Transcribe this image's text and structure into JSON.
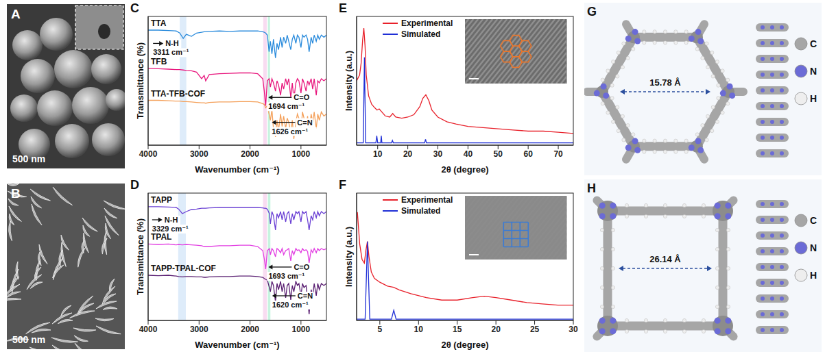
{
  "chart_data": [
    {
      "panel": "C",
      "type": "line",
      "x_label": "Wavenumber (cm⁻¹)",
      "y_label": "Transmittance (%)",
      "x": [
        4000,
        3800,
        3600,
        3450,
        3380,
        3311,
        3250,
        3150,
        3050,
        2950,
        2900,
        2870,
        2800,
        2600,
        2400,
        2200,
        2000,
        1850,
        1750,
        1720,
        1694,
        1660,
        1626,
        1600,
        1570,
        1540,
        1500,
        1470,
        1440,
        1400,
        1370,
        1340,
        1300,
        1270,
        1240,
        1200,
        1170,
        1140,
        1100,
        1070,
        1040,
        1000,
        970,
        940,
        900,
        870,
        840,
        800,
        770,
        740,
        700,
        670,
        640,
        600,
        550,
        500
      ],
      "xlim": [
        4000,
        500
      ],
      "xticks": [
        4000,
        3000,
        2000,
        1000
      ],
      "ylim": [
        0,
        3.1
      ],
      "tick_labels": "x",
      "series": [
        {
          "name": "TTA",
          "color": "#2a8bdc",
          "values": [
            2.77,
            2.77,
            2.76,
            2.75,
            2.7,
            2.57,
            2.67,
            2.62,
            2.7,
            2.72,
            2.73,
            2.73,
            2.74,
            2.75,
            2.74,
            2.75,
            2.75,
            2.75,
            2.73,
            2.72,
            2.7,
            2.65,
            2.25,
            2.5,
            2.2,
            2.55,
            2.1,
            2.45,
            2.3,
            2.6,
            2.35,
            2.6,
            2.45,
            2.65,
            2.5,
            2.3,
            2.55,
            2.65,
            2.45,
            2.65,
            2.6,
            2.35,
            2.65,
            2.6,
            2.65,
            2.55,
            2.25,
            2.6,
            2.45,
            2.65,
            2.5,
            2.65,
            2.55,
            2.65,
            2.6,
            2.65
          ]
        },
        {
          "name": "TFB",
          "color": "#e8187e",
          "values": [
            1.85,
            1.84,
            1.83,
            1.82,
            1.82,
            1.81,
            1.8,
            1.79,
            1.76,
            1.6,
            1.68,
            1.55,
            1.7,
            1.72,
            1.73,
            1.74,
            1.74,
            1.72,
            1.6,
            1.3,
            0.95,
            1.55,
            1.6,
            1.4,
            1.6,
            1.5,
            1.3,
            1.55,
            1.45,
            1.2,
            1.5,
            1.35,
            1.6,
            1.45,
            1.6,
            1.15,
            1.5,
            1.1,
            1.5,
            1.6,
            1.55,
            1.25,
            1.6,
            1.5,
            1.3,
            1.55,
            1.45,
            1.6,
            1.35,
            1.6,
            1.2,
            1.55,
            1.5,
            1.6,
            1.55,
            1.6
          ]
        },
        {
          "name": "TTA-TFB-COF",
          "color": "#f4a05a",
          "values": [
            1.08,
            1.08,
            1.07,
            1.06,
            1.06,
            1.05,
            1.05,
            1.04,
            1.03,
            1.02,
            1.02,
            1.01,
            1.03,
            1.04,
            1.04,
            1.05,
            1.05,
            1.04,
            1.0,
            0.98,
            0.9,
            0.95,
            0.75,
            0.6,
            0.85,
            0.4,
            0.2,
            0.6,
            0.35,
            0.75,
            0.45,
            0.7,
            0.4,
            0.65,
            0.55,
            0.3,
            0.6,
            0.15,
            0.55,
            0.75,
            0.65,
            0.35,
            0.8,
            0.65,
            0.45,
            0.7,
            0.3,
            0.75,
            0.55,
            0.8,
            0.4,
            0.75,
            0.6,
            0.8,
            0.7,
            0.75
          ]
        }
      ],
      "bands": [
        {
          "x1": 3380,
          "x2": 3250,
          "color": "#d3e5f8"
        },
        {
          "x1": 1740,
          "x2": 1672,
          "color": "#f6d0ec"
        },
        {
          "x1": 1650,
          "x2": 1608,
          "color": "#b4f0d6"
        }
      ],
      "annotations": [
        {
          "label": "N-H",
          "text": "3311 cm⁻¹",
          "x": 3311,
          "y": 2.45
        },
        {
          "label": "C=O",
          "text": "1694 cm⁻¹",
          "x": 1694,
          "y": 1.15
        },
        {
          "label": "C=N",
          "text": "1626 cm⁻¹",
          "x": 1626,
          "y": 0.55
        }
      ]
    },
    {
      "panel": "D",
      "type": "line",
      "x_label": "Wavenumber (cm⁻¹)",
      "y_label": "Transmittance (%)",
      "x": [
        4000,
        3800,
        3600,
        3450,
        3400,
        3329,
        3250,
        3150,
        3050,
        2950,
        2900,
        2870,
        2800,
        2600,
        2400,
        2200,
        2000,
        1850,
        1750,
        1720,
        1693,
        1660,
        1620,
        1600,
        1570,
        1540,
        1500,
        1470,
        1440,
        1400,
        1370,
        1340,
        1300,
        1270,
        1240,
        1200,
        1170,
        1140,
        1100,
        1070,
        1040,
        1000,
        970,
        940,
        900,
        870,
        840,
        800,
        770,
        740,
        700,
        670,
        640,
        600,
        550,
        500
      ],
      "xlim": [
        4000,
        500
      ],
      "xticks": [
        4000,
        3000,
        2000,
        1000
      ],
      "ylim": [
        0,
        3.1
      ],
      "tick_labels": "x",
      "series": [
        {
          "name": "TAPP",
          "color": "#6a40d4",
          "values": [
            2.77,
            2.77,
            2.76,
            2.75,
            2.71,
            2.6,
            2.65,
            2.7,
            2.71,
            2.73,
            2.73,
            2.73,
            2.74,
            2.75,
            2.75,
            2.75,
            2.75,
            2.75,
            2.74,
            2.73,
            2.73,
            2.71,
            2.6,
            2.35,
            2.65,
            2.55,
            2.2,
            2.6,
            2.5,
            2.65,
            2.45,
            2.65,
            2.4,
            2.6,
            2.65,
            2.35,
            2.6,
            2.45,
            2.65,
            2.6,
            2.65,
            2.4,
            2.65,
            2.6,
            2.65,
            2.45,
            2.2,
            2.55,
            2.45,
            2.65,
            2.5,
            2.65,
            2.55,
            2.65,
            2.6,
            2.65
          ]
        },
        {
          "name": "TPAL",
          "color": "#e23ee2",
          "values": [
            1.86,
            1.85,
            1.86,
            1.84,
            1.85,
            1.84,
            1.85,
            1.84,
            1.83,
            1.82,
            1.8,
            1.8,
            1.8,
            1.82,
            1.82,
            1.83,
            1.83,
            1.8,
            1.7,
            1.5,
            1.25,
            1.7,
            1.75,
            1.6,
            1.75,
            1.7,
            1.55,
            1.75,
            1.72,
            1.65,
            1.75,
            1.6,
            1.7,
            1.72,
            1.75,
            1.45,
            1.7,
            1.6,
            1.75,
            1.7,
            1.72,
            1.65,
            1.75,
            1.7,
            1.72,
            1.68,
            1.4,
            1.72,
            1.65,
            1.75,
            1.65,
            1.75,
            1.7,
            1.75,
            1.72,
            1.75
          ]
        },
        {
          "name": "TAPP-TPAL-COF",
          "color": "#5a1f72",
          "values": [
            1.1,
            1.09,
            1.1,
            1.08,
            1.07,
            1.06,
            1.07,
            1.07,
            1.06,
            1.06,
            1.05,
            1.05,
            1.06,
            1.07,
            1.07,
            1.08,
            1.08,
            1.07,
            1.05,
            1.02,
            1.0,
            0.98,
            0.8,
            0.7,
            0.95,
            0.85,
            0.45,
            0.9,
            0.75,
            0.95,
            0.7,
            0.9,
            0.55,
            0.85,
            0.9,
            0.5,
            0.85,
            0.7,
            0.95,
            0.85,
            0.9,
            0.6,
            0.9,
            0.8,
            0.85,
            0.55,
            0.15,
            0.75,
            0.6,
            0.9,
            0.6,
            0.9,
            0.75,
            0.9,
            0.85,
            0.9
          ]
        }
      ],
      "bands": [
        {
          "x1": 3410,
          "x2": 3260,
          "color": "#d3e5f8"
        },
        {
          "x1": 1745,
          "x2": 1668,
          "color": "#f6d0ec"
        },
        {
          "x1": 1650,
          "x2": 1600,
          "color": "#b4f0d6"
        }
      ],
      "annotations": [
        {
          "label": "N-H",
          "text": "3329 cm⁻¹",
          "x": 3329,
          "y": 2.45
        },
        {
          "label": "C=O",
          "text": "1693 cm⁻¹",
          "x": 1693,
          "y": 1.3
        },
        {
          "label": "C=N",
          "text": "1620 cm⁻¹",
          "x": 1620,
          "y": 0.6
        }
      ]
    },
    {
      "panel": "E",
      "type": "line",
      "x_label": "2θ (degree)",
      "y_label": "Intensity (a.u.)",
      "xlim": [
        3,
        75
      ],
      "xticks": [
        10,
        20,
        30,
        40,
        50,
        60,
        70
      ],
      "ylim": [
        0,
        1.1
      ],
      "tick_labels": "x",
      "legend": "upper left",
      "series": [
        {
          "name": "Experimental",
          "color": "#e8202a",
          "x": [
            3,
            4,
            4.5,
            5,
            5.4,
            5.8,
            6.2,
            7,
            8,
            9,
            9.8,
            10.5,
            11.5,
            12.5,
            14,
            15,
            16,
            18,
            20,
            22,
            24,
            25,
            26,
            27,
            28,
            30,
            33,
            36,
            40,
            45,
            50,
            55,
            60,
            65,
            70,
            75
          ],
          "values": [
            0.55,
            0.6,
            0.7,
            0.9,
            1.0,
            0.85,
            0.6,
            0.42,
            0.35,
            0.32,
            0.3,
            0.31,
            0.28,
            0.25,
            0.24,
            0.27,
            0.24,
            0.23,
            0.24,
            0.26,
            0.33,
            0.4,
            0.43,
            0.38,
            0.3,
            0.24,
            0.2,
            0.18,
            0.16,
            0.15,
            0.14,
            0.13,
            0.12,
            0.12,
            0.11,
            0.1
          ]
        },
        {
          "name": "Simulated",
          "color": "#1f2fd6",
          "x": [
            3,
            5.2,
            5.6,
            6.0,
            9.4,
            9.7,
            10.0,
            11.0,
            11.2,
            11.4,
            14.6,
            14.9,
            15.2,
            25.6,
            25.9,
            26.2,
            75
          ],
          "values": [
            0.02,
            0.02,
            0.75,
            0.02,
            0.02,
            0.08,
            0.02,
            0.02,
            0.08,
            0.02,
            0.02,
            0.04,
            0.02,
            0.02,
            0.05,
            0.02,
            0.02
          ]
        }
      ]
    },
    {
      "panel": "F",
      "type": "line",
      "x_label": "2θ (degree)",
      "y_label": "Intensity (a.u.)",
      "xlim": [
        2,
        30
      ],
      "xticks": [
        5,
        10,
        15,
        20,
        25,
        30
      ],
      "ylim": [
        0,
        1
      ],
      "tick_labels": "x",
      "legend": "upper left",
      "series": [
        {
          "name": "Experimental",
          "color": "#e8202a",
          "x": [
            2.1,
            2.4,
            2.7,
            3.0,
            3.2,
            3.4,
            3.6,
            3.9,
            4.3,
            5,
            6,
            6.8,
            7.5,
            9,
            11,
            13,
            15,
            17,
            18.5,
            20,
            22,
            24,
            26,
            28,
            30
          ],
          "values": [
            0.85,
            0.6,
            0.48,
            0.45,
            0.55,
            0.62,
            0.5,
            0.38,
            0.33,
            0.3,
            0.27,
            0.26,
            0.24,
            0.21,
            0.18,
            0.16,
            0.16,
            0.18,
            0.19,
            0.18,
            0.16,
            0.14,
            0.13,
            0.12,
            0.12
          ]
        },
        {
          "name": "Simulated",
          "color": "#1f2fd6",
          "x": [
            2,
            3.1,
            3.4,
            3.7,
            6.5,
            6.8,
            7.1,
            30
          ],
          "values": [
            0.01,
            0.01,
            0.62,
            0.01,
            0.01,
            0.08,
            0.01,
            0.01
          ]
        }
      ]
    }
  ],
  "panels": [
    {
      "panel": "A",
      "scale_bar": "500 nm"
    },
    {
      "panel": "B",
      "scale_bar": "500 nm"
    },
    {
      "panel": "G",
      "pore_size": "15.78 Å",
      "atoms": [
        {
          "symbol": "C",
          "color": "#a6a6a6"
        },
        {
          "symbol": "N",
          "color": "#6b6bd6"
        },
        {
          "symbol": "H",
          "color": "#eeeeee"
        }
      ]
    },
    {
      "panel": "H",
      "pore_size": "26.14 Å",
      "atoms": [
        {
          "symbol": "C",
          "color": "#a6a6a6"
        },
        {
          "symbol": "N",
          "color": "#6b6bd6"
        },
        {
          "symbol": "H",
          "color": "#eeeeee"
        }
      ]
    }
  ]
}
